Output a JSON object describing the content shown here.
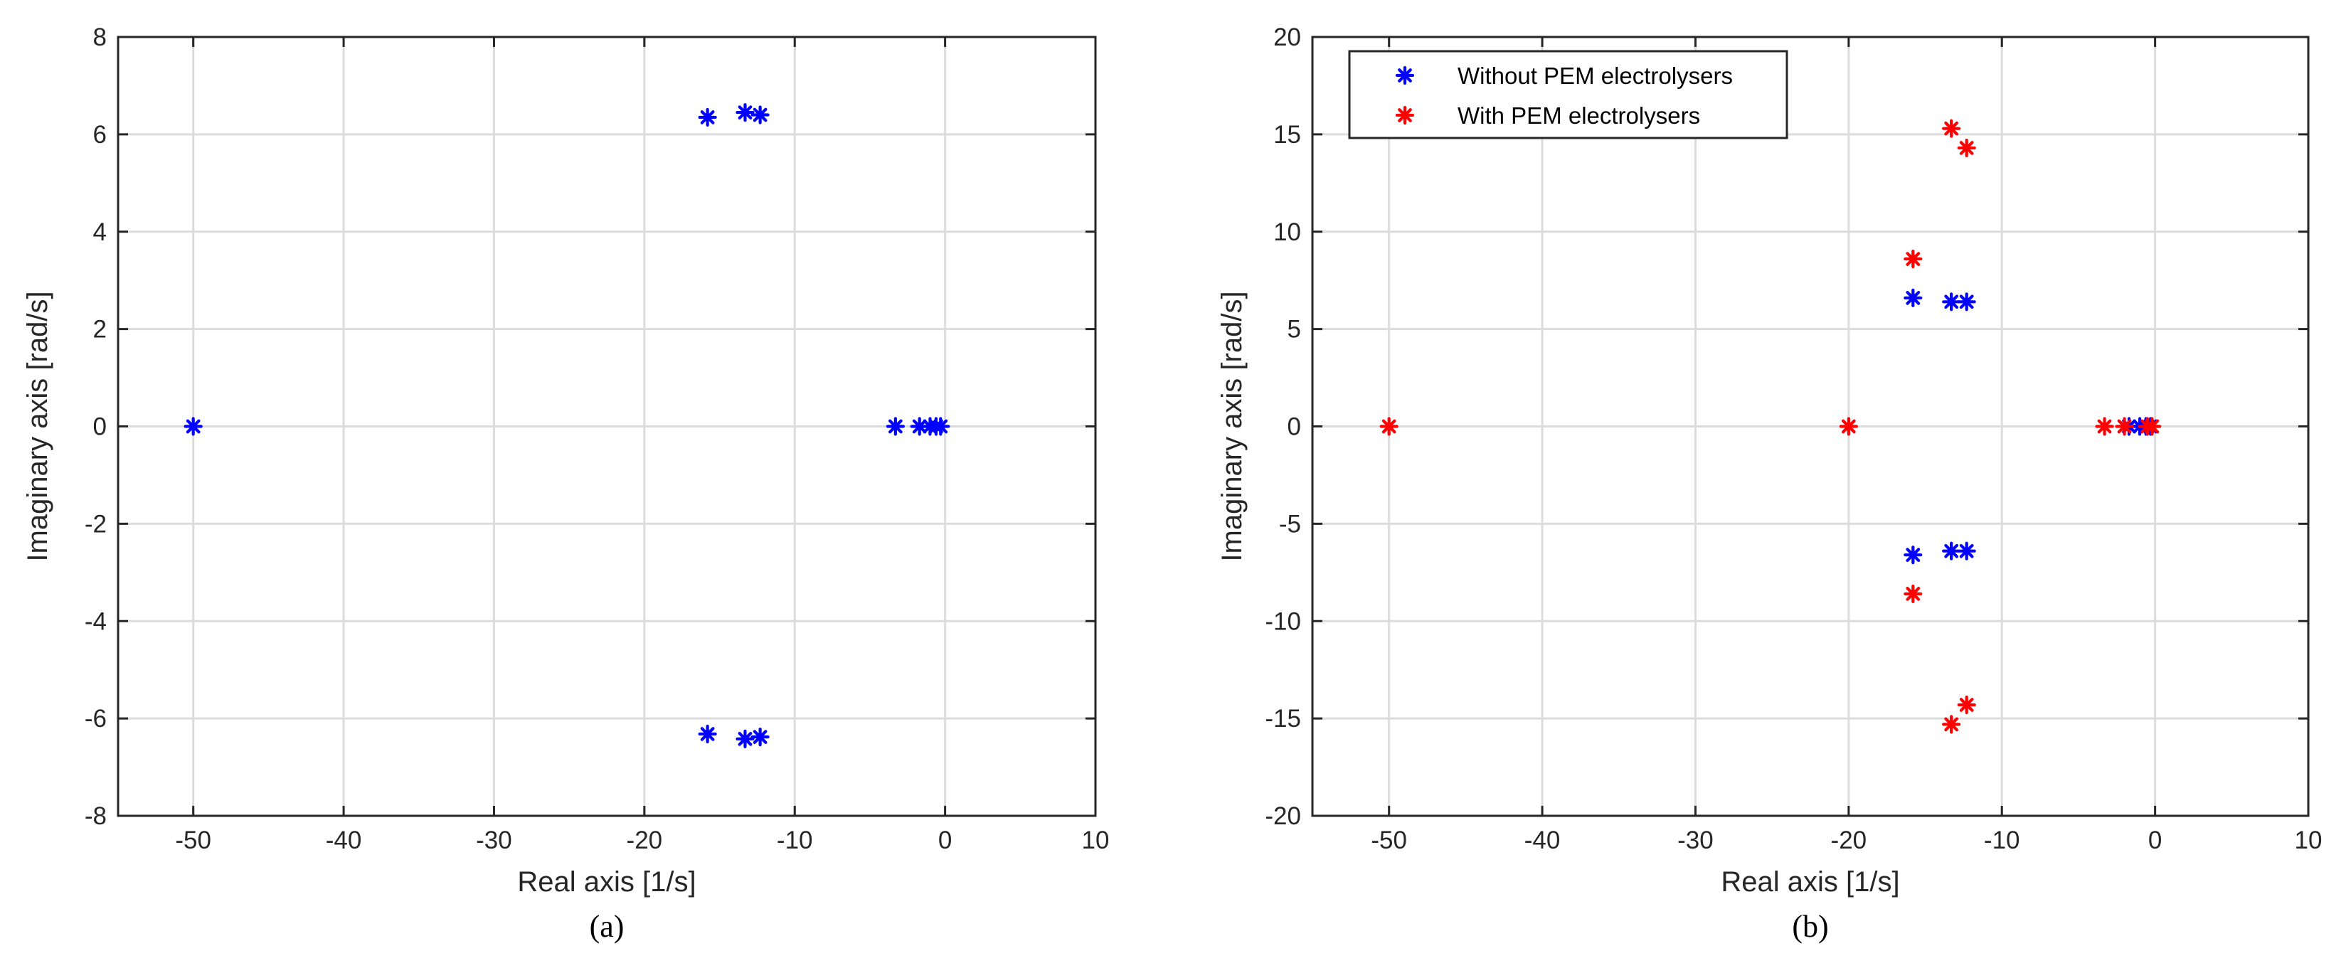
{
  "chart_data": [
    {
      "type": "scatter",
      "caption": "(a)",
      "xlabel": "Real axis [1/s]",
      "ylabel": "Imaginary axis [rad/s]",
      "xlim": [
        -55,
        10
      ],
      "ylim": [
        -8,
        8
      ],
      "xticks": [
        -50,
        -40,
        -30,
        -20,
        -10,
        0,
        10
      ],
      "yticks": [
        -8,
        -6,
        -4,
        -2,
        0,
        2,
        4,
        6,
        8
      ],
      "grid": true,
      "legend": null,
      "series": [
        {
          "color": "#0000ff",
          "marker": "*",
          "points": [
            [
              -50,
              0
            ],
            [
              -15.8,
              6.35
            ],
            [
              -13.3,
              6.45
            ],
            [
              -12.3,
              6.4
            ],
            [
              -15.8,
              -6.32
            ],
            [
              -13.3,
              -6.42
            ],
            [
              -12.3,
              -6.38
            ],
            [
              -3.3,
              0
            ],
            [
              -1.7,
              0
            ],
            [
              -1.0,
              0
            ],
            [
              -0.6,
              0
            ],
            [
              -0.3,
              0
            ]
          ]
        }
      ]
    },
    {
      "type": "scatter",
      "caption": "(b)",
      "xlabel": "Real axis [1/s]",
      "ylabel": "Imaginary axis [rad/s]",
      "xlim": [
        -55,
        10
      ],
      "ylim": [
        -20,
        20
      ],
      "xticks": [
        -50,
        -40,
        -30,
        -20,
        -10,
        0,
        10
      ],
      "yticks": [
        -20,
        -15,
        -10,
        -5,
        0,
        5,
        10,
        15,
        20
      ],
      "grid": true,
      "legend": "top-left",
      "series": [
        {
          "name": "Without PEM electrolysers",
          "color": "#0000ff",
          "marker": "*",
          "points": [
            [
              -15.8,
              6.6
            ],
            [
              -13.3,
              6.4
            ],
            [
              -12.3,
              6.4
            ],
            [
              -15.8,
              -6.6
            ],
            [
              -13.3,
              -6.4
            ],
            [
              -12.3,
              -6.4
            ],
            [
              -1.7,
              0
            ],
            [
              -1.0,
              0
            ],
            [
              -0.6,
              0
            ],
            [
              -0.3,
              0
            ]
          ]
        },
        {
          "name": "With PEM electrolysers",
          "color": "#ff0000",
          "marker": "*",
          "points": [
            [
              -50,
              0
            ],
            [
              -20,
              0
            ],
            [
              -15.8,
              8.6
            ],
            [
              -15.8,
              -8.6
            ],
            [
              -13.3,
              15.3
            ],
            [
              -13.3,
              -15.3
            ],
            [
              -12.3,
              14.3
            ],
            [
              -12.3,
              -14.3
            ],
            [
              -3.3,
              0
            ],
            [
              -2.0,
              0
            ],
            [
              -0.5,
              0
            ],
            [
              -0.2,
              0
            ]
          ]
        }
      ]
    }
  ]
}
